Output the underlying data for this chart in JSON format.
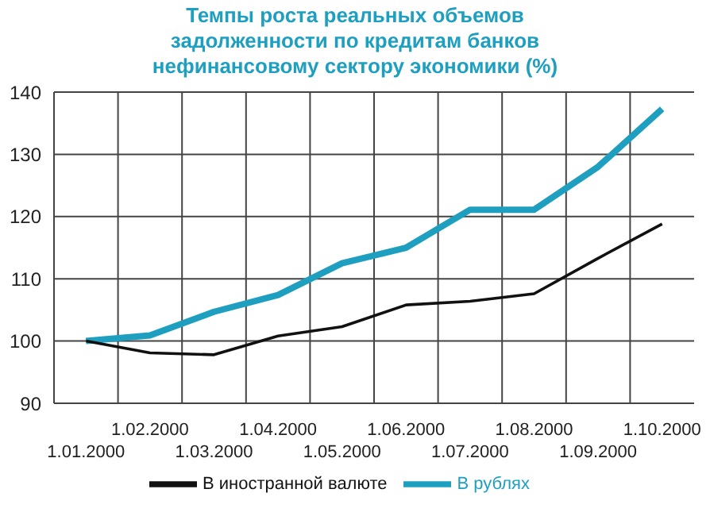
{
  "chart_data": {
    "type": "line",
    "title": "Темпы роста реальных объемов задолженности по кредитам банков нефинансовому сектору экономики (%)",
    "categories": [
      "1.01.2000",
      "1.02.2000",
      "1.03.2000",
      "1.04.2000",
      "1.05.2000",
      "1.06.2000",
      "1.07.2000",
      "1.08.2000",
      "1.09.2000",
      "1.10.2000"
    ],
    "series": [
      {
        "name": "В рублях",
        "color": "#1e9fc0",
        "values": [
          100,
          100.9,
          104.7,
          107.4,
          112.5,
          115,
          121.1,
          121.1,
          128,
          137.3
        ]
      },
      {
        "name": "В иностранной валюте",
        "color": "#111111",
        "values": [
          100,
          98.1,
          97.8,
          100.8,
          102.3,
          105.8,
          106.4,
          107.6,
          113.3,
          118.8
        ]
      }
    ],
    "ylim": [
      90,
      140
    ],
    "yticks": [
      90,
      100,
      110,
      120,
      130,
      140
    ],
    "grid": true,
    "legend": "bottom",
    "marker": "none",
    "line_style": "solid"
  }
}
